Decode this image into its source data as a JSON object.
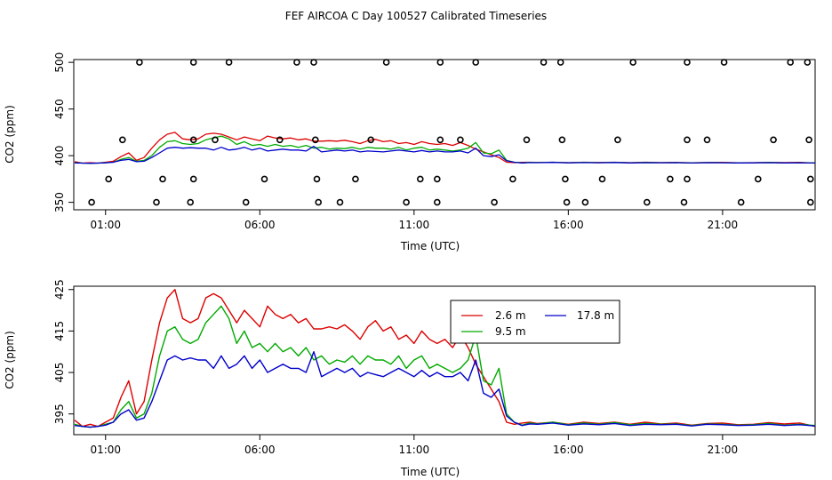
{
  "figure": {
    "title": "FEF AIRCOA C  Day 100527  Calibrated Timeseries",
    "colors": {
      "axis": "#000000",
      "h26": "#dd0000",
      "h95": "#00aa00",
      "h178": "#0000cc",
      "marker": "#000000"
    }
  },
  "chart_data": [
    {
      "type": "scatter+line",
      "panel": "top",
      "title": "FEF AIRCOA C  Day 100527  Calibrated Timeseries",
      "xlabel": "Time (UTC)",
      "ylabel": "CO2 (ppm)",
      "xlim": [
        -0.03,
        24
      ],
      "ylim": [
        342,
        503
      ],
      "x_tick_values": [
        1,
        6,
        11,
        16,
        21
      ],
      "x_tick_labels": [
        "01:00",
        "06:00",
        "11:00",
        "16:00",
        "21:00"
      ],
      "y_tick_values": [
        350,
        400,
        450,
        500
      ],
      "y_tick_labels": [
        "350",
        "400",
        "450",
        "500"
      ],
      "calibration_points": [
        {
          "x": 2.1,
          "y": 500
        },
        {
          "x": 3.85,
          "y": 500
        },
        {
          "x": 5.0,
          "y": 500
        },
        {
          "x": 7.2,
          "y": 500
        },
        {
          "x": 7.75,
          "y": 500
        },
        {
          "x": 10.1,
          "y": 500
        },
        {
          "x": 11.85,
          "y": 500
        },
        {
          "x": 13.0,
          "y": 500
        },
        {
          "x": 15.2,
          "y": 500
        },
        {
          "x": 15.75,
          "y": 500
        },
        {
          "x": 18.1,
          "y": 500
        },
        {
          "x": 19.85,
          "y": 500
        },
        {
          "x": 21.05,
          "y": 500
        },
        {
          "x": 23.2,
          "y": 500
        },
        {
          "x": 23.75,
          "y": 500
        },
        {
          "x": 1.55,
          "y": 417
        },
        {
          "x": 3.85,
          "y": 417
        },
        {
          "x": 4.55,
          "y": 417
        },
        {
          "x": 6.65,
          "y": 417
        },
        {
          "x": 7.8,
          "y": 417
        },
        {
          "x": 9.6,
          "y": 417
        },
        {
          "x": 11.85,
          "y": 417
        },
        {
          "x": 12.5,
          "y": 417
        },
        {
          "x": 14.65,
          "y": 417
        },
        {
          "x": 15.8,
          "y": 417
        },
        {
          "x": 17.6,
          "y": 417
        },
        {
          "x": 19.85,
          "y": 417
        },
        {
          "x": 20.5,
          "y": 417
        },
        {
          "x": 22.65,
          "y": 417
        },
        {
          "x": 23.8,
          "y": 417
        },
        {
          "x": 1.1,
          "y": 375
        },
        {
          "x": 2.85,
          "y": 375
        },
        {
          "x": 3.85,
          "y": 375
        },
        {
          "x": 6.15,
          "y": 375
        },
        {
          "x": 7.85,
          "y": 375
        },
        {
          "x": 9.1,
          "y": 375
        },
        {
          "x": 11.2,
          "y": 375
        },
        {
          "x": 11.75,
          "y": 375
        },
        {
          "x": 14.2,
          "y": 375
        },
        {
          "x": 15.9,
          "y": 375
        },
        {
          "x": 17.1,
          "y": 375
        },
        {
          "x": 19.3,
          "y": 375
        },
        {
          "x": 19.85,
          "y": 375
        },
        {
          "x": 22.15,
          "y": 375
        },
        {
          "x": 23.85,
          "y": 375
        },
        {
          "x": 0.55,
          "y": 350
        },
        {
          "x": 2.65,
          "y": 350
        },
        {
          "x": 3.75,
          "y": 350
        },
        {
          "x": 5.55,
          "y": 350
        },
        {
          "x": 7.9,
          "y": 350
        },
        {
          "x": 8.6,
          "y": 350
        },
        {
          "x": 10.75,
          "y": 350
        },
        {
          "x": 11.75,
          "y": 350
        },
        {
          "x": 13.6,
          "y": 350
        },
        {
          "x": 15.95,
          "y": 350
        },
        {
          "x": 16.55,
          "y": 350
        },
        {
          "x": 18.55,
          "y": 350
        },
        {
          "x": 19.75,
          "y": 350
        },
        {
          "x": 21.6,
          "y": 350
        },
        {
          "x": 23.85,
          "y": 350
        }
      ]
    },
    {
      "type": "line",
      "panel": "bottom",
      "xlabel": "Time (UTC)",
      "ylabel": "CO2 (ppm)",
      "xlim": [
        -0.03,
        24
      ],
      "ylim": [
        390,
        425.8
      ],
      "x_tick_values": [
        1,
        6,
        11,
        16,
        21
      ],
      "x_tick_labels": [
        "01:00",
        "06:00",
        "11:00",
        "16:00",
        "21:00"
      ],
      "y_tick_values": [
        395,
        405,
        415,
        425
      ],
      "y_tick_labels": [
        "395",
        "405",
        "415",
        "425"
      ],
      "legend": {
        "placement": "top-right",
        "entries": [
          "2.6 m",
          "9.5 m",
          "17.8 m"
        ]
      },
      "series": [
        {
          "name": "2.6 m",
          "x": [
            0,
            0.25,
            0.5,
            0.75,
            1.0,
            1.25,
            1.5,
            1.75,
            2.0,
            2.25,
            2.5,
            2.75,
            3.0,
            3.25,
            3.5,
            3.75,
            4.0,
            4.25,
            4.5,
            4.75,
            5.0,
            5.25,
            5.5,
            5.75,
            6.0,
            6.25,
            6.5,
            6.75,
            7.0,
            7.25,
            7.5,
            7.75,
            8.0,
            8.25,
            8.5,
            8.75,
            9.0,
            9.25,
            9.5,
            9.75,
            10.0,
            10.25,
            10.5,
            10.75,
            11.0,
            11.25,
            11.5,
            11.75,
            12.0,
            12.25,
            12.5,
            12.75,
            13.0,
            13.25,
            13.5,
            13.75,
            14.0,
            14.25,
            14.5,
            14.75,
            15.0,
            15.5,
            16.0,
            16.5,
            17.0,
            17.5,
            18.0,
            18.5,
            19.0,
            19.5,
            20.0,
            20.5,
            21.0,
            21.5,
            22.0,
            22.5,
            23.0,
            23.5,
            24.0
          ],
          "values": [
            393.5,
            392.0,
            392.5,
            392.0,
            393.0,
            394.0,
            399.0,
            403.0,
            395.0,
            398.0,
            408.0,
            417.0,
            423.0,
            425.0,
            418.0,
            417.0,
            418.0,
            423.0,
            424.0,
            423.0,
            420.0,
            417.0,
            420.0,
            418.0,
            416.0,
            421.0,
            419.0,
            418.0,
            419.0,
            417.0,
            418.0,
            415.5,
            415.5,
            416.0,
            415.5,
            416.5,
            415.0,
            413.0,
            416.0,
            417.5,
            415.0,
            416.0,
            413.0,
            414.0,
            412.0,
            415.0,
            413.0,
            412.0,
            413.0,
            411.0,
            414.0,
            411.0,
            407.0,
            404.0,
            401.0,
            398.0,
            393.0,
            392.5,
            392.8,
            393.0,
            392.7,
            393.0,
            392.5,
            393.0,
            392.7,
            393.0,
            392.5,
            393.0,
            392.6,
            392.8,
            392.3,
            392.7,
            392.8,
            392.4,
            392.5,
            392.9,
            392.6,
            392.8,
            392.0
          ]
        },
        {
          "name": "9.5 m",
          "x": [
            0,
            0.25,
            0.5,
            0.75,
            1.0,
            1.25,
            1.5,
            1.75,
            2.0,
            2.25,
            2.5,
            2.75,
            3.0,
            3.25,
            3.5,
            3.75,
            4.0,
            4.25,
            4.5,
            4.75,
            5.0,
            5.25,
            5.5,
            5.75,
            6.0,
            6.25,
            6.5,
            6.75,
            7.0,
            7.25,
            7.5,
            7.75,
            8.0,
            8.25,
            8.5,
            8.75,
            9.0,
            9.25,
            9.5,
            9.75,
            10.0,
            10.25,
            10.5,
            10.75,
            11.0,
            11.25,
            11.5,
            11.75,
            12.0,
            12.25,
            12.5,
            12.75,
            13.0,
            13.25,
            13.5,
            13.75,
            14.0,
            14.25,
            14.5,
            14.75,
            15.0,
            15.5,
            16.0,
            16.5,
            17.0,
            17.5,
            18.0,
            18.5,
            19.0,
            19.5,
            20.0,
            20.5,
            21.0,
            21.5,
            22.0,
            22.5,
            23.0,
            23.5,
            24.0
          ],
          "values": [
            392.5,
            392.0,
            391.8,
            392.0,
            392.5,
            393.0,
            396.0,
            398.0,
            394.0,
            395.0,
            400.0,
            409.0,
            415.0,
            416.0,
            413.0,
            412.0,
            413.0,
            417.0,
            419.0,
            421.0,
            418.0,
            412.0,
            415.0,
            411.0,
            412.0,
            410.0,
            412.0,
            410.0,
            411.0,
            409.0,
            411.0,
            408.0,
            409.0,
            407.0,
            408.0,
            407.5,
            409.0,
            407.0,
            409.0,
            408.0,
            408.0,
            407.0,
            409.0,
            406.0,
            408.0,
            409.0,
            406.0,
            407.0,
            406.0,
            405.0,
            406.0,
            408.0,
            414.0,
            403.0,
            402.0,
            406.0,
            395.0,
            393.0,
            392.3,
            392.8,
            392.6,
            393.0,
            392.4,
            392.8,
            392.5,
            392.9,
            392.4,
            392.7,
            392.5,
            392.6,
            392.2,
            392.6,
            392.5,
            392.3,
            392.4,
            392.7,
            392.3,
            392.5,
            392.2
          ]
        },
        {
          "name": "17.8 m",
          "x": [
            0,
            0.25,
            0.5,
            0.75,
            1.0,
            1.25,
            1.5,
            1.75,
            2.0,
            2.25,
            2.5,
            2.75,
            3.0,
            3.25,
            3.5,
            3.75,
            4.0,
            4.25,
            4.5,
            4.75,
            5.0,
            5.25,
            5.5,
            5.75,
            6.0,
            6.25,
            6.5,
            6.75,
            7.0,
            7.25,
            7.5,
            7.75,
            8.0,
            8.25,
            8.5,
            8.75,
            9.0,
            9.25,
            9.5,
            9.75,
            10.0,
            10.25,
            10.5,
            10.75,
            11.0,
            11.25,
            11.5,
            11.75,
            12.0,
            12.25,
            12.5,
            12.75,
            13.0,
            13.25,
            13.5,
            13.75,
            14.0,
            14.25,
            14.5,
            14.75,
            15.0,
            15.5,
            16.0,
            16.5,
            17.0,
            17.5,
            18.0,
            18.5,
            19.0,
            19.5,
            20.0,
            20.5,
            21.0,
            21.5,
            22.0,
            22.5,
            23.0,
            23.5,
            24.0
          ],
          "values": [
            392.2,
            392.0,
            391.8,
            392.0,
            392.3,
            393.0,
            395.0,
            396.0,
            393.5,
            394.0,
            398.0,
            403.0,
            408.0,
            409.0,
            408.0,
            408.5,
            408.0,
            408.0,
            406.0,
            409.0,
            406.0,
            407.0,
            409.0,
            406.0,
            408.0,
            405.0,
            406.0,
            407.0,
            406.0,
            406.0,
            405.0,
            410.0,
            404.0,
            405.0,
            406.0,
            405.0,
            406.0,
            404.0,
            405.0,
            404.5,
            404.0,
            405.0,
            406.0,
            405.0,
            404.0,
            405.5,
            404.0,
            405.0,
            404.0,
            404.0,
            405.0,
            403.0,
            408.0,
            400.0,
            399.0,
            401.0,
            394.5,
            393.0,
            392.2,
            392.6,
            392.5,
            392.8,
            392.3,
            392.6,
            392.4,
            392.7,
            392.2,
            392.5,
            392.4,
            392.5,
            392.1,
            392.5,
            392.4,
            392.2,
            392.3,
            392.5,
            392.2,
            392.4,
            392.1
          ]
        }
      ]
    }
  ]
}
